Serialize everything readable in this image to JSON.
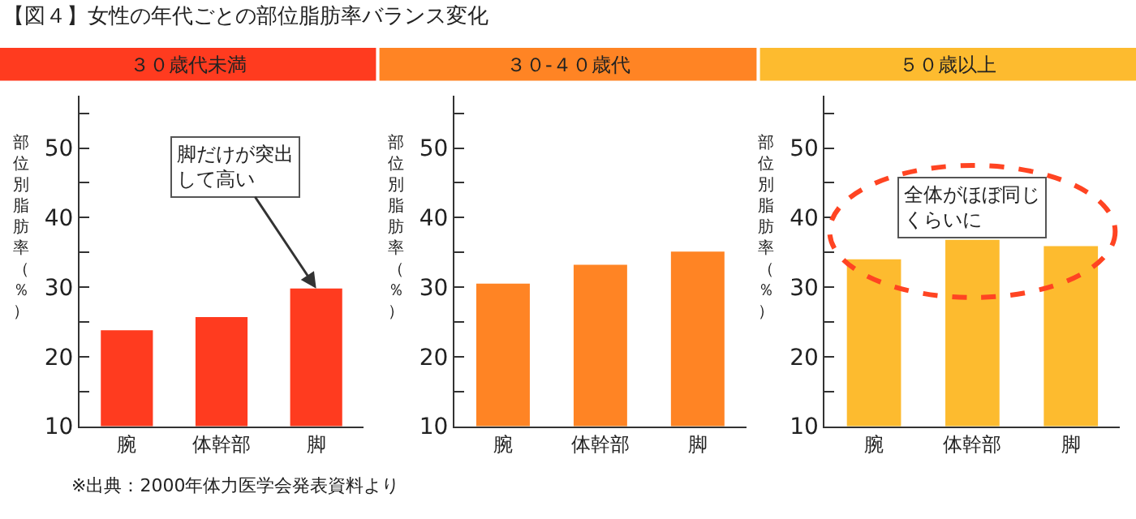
{
  "chart_data": [
    {
      "type": "bar",
      "title": "３０歳代未満",
      "ylabel": "部位別脂肪率（％）",
      "categories": [
        "腕",
        "体幹部",
        "脚"
      ],
      "series": [
        {
          "color": "#ff3b1f",
          "values": [
            23.8,
            25.7,
            29.8
          ]
        }
      ],
      "ylim": [
        10,
        57.5
      ],
      "yticks": [
        10,
        {
          "value": 15,
          "label": null
        },
        20,
        {
          "value": 25,
          "label": null
        },
        30,
        {
          "value": 35,
          "label": null
        },
        40,
        {
          "value": 45,
          "label": null
        },
        50,
        {
          "value": 55,
          "label": null
        }
      ],
      "annotations": [
        "【図４】女性の年代ごとの部位脂肪率バランス変化",
        {
          "text": "脚だけが突出して高い",
          "x": "脚",
          "y": 29.8
        },
        "※出典：2000年体力医学会発表資料より"
      ]
    },
    {
      "type": "bar",
      "title": "３０-４０歳代",
      "ylabel": "部位別脂肪率（％）",
      "categories": [
        "腕",
        "体幹部",
        "脚"
      ],
      "series": [
        {
          "color": "#ff8424",
          "values": [
            30.5,
            33.2,
            35.1
          ]
        }
      ],
      "ylim": [
        10,
        57.5
      ],
      "yticks": [
        10,
        {
          "value": 15,
          "label": null
        },
        20,
        {
          "value": 25,
          "label": null
        },
        30,
        {
          "value": 35,
          "label": null
        },
        40,
        {
          "value": 45,
          "label": null
        },
        50,
        {
          "value": 55,
          "label": null
        }
      ]
    },
    {
      "type": "bar",
      "title": "５０歳以上",
      "ylabel": "部位別脂肪率（％）",
      "categories": [
        "腕",
        "体幹部",
        "脚"
      ],
      "series": [
        {
          "color": "#fdbb2f",
          "values": [
            34.0,
            36.8,
            35.9
          ]
        }
      ],
      "ylim": [
        10,
        57.5
      ],
      "yticks": [
        10,
        {
          "value": 15,
          "label": null
        },
        20,
        {
          "value": 25,
          "label": null
        },
        30,
        {
          "value": 35,
          "label": null
        },
        40,
        {
          "value": 45,
          "label": null
        },
        50,
        {
          "value": 55,
          "label": null
        }
      ],
      "annotations": [
        "全体がほぼ同じくらいに"
      ]
    }
  ]
}
